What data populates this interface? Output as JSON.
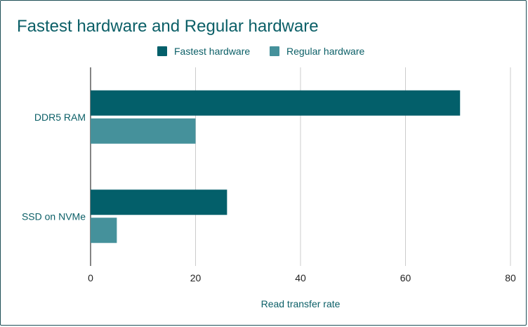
{
  "chart_data": {
    "type": "bar",
    "orientation": "horizontal",
    "title": "Fastest hardware and Regular hardware",
    "xlabel": "Read transfer rate",
    "ylabel": "",
    "categories": [
      "DDR5 RAM",
      "SSD on NVMe"
    ],
    "series": [
      {
        "name": "Fastest hardware",
        "values": [
          70.4,
          26
        ],
        "color": "#035f6a"
      },
      {
        "name": "Regular hardware",
        "values": [
          20,
          5
        ],
        "color": "#45919b"
      }
    ],
    "xlim": [
      0,
      80
    ],
    "xticks": [
      0,
      20,
      40,
      60,
      80
    ],
    "grid": true,
    "legend_position": "top-center"
  }
}
